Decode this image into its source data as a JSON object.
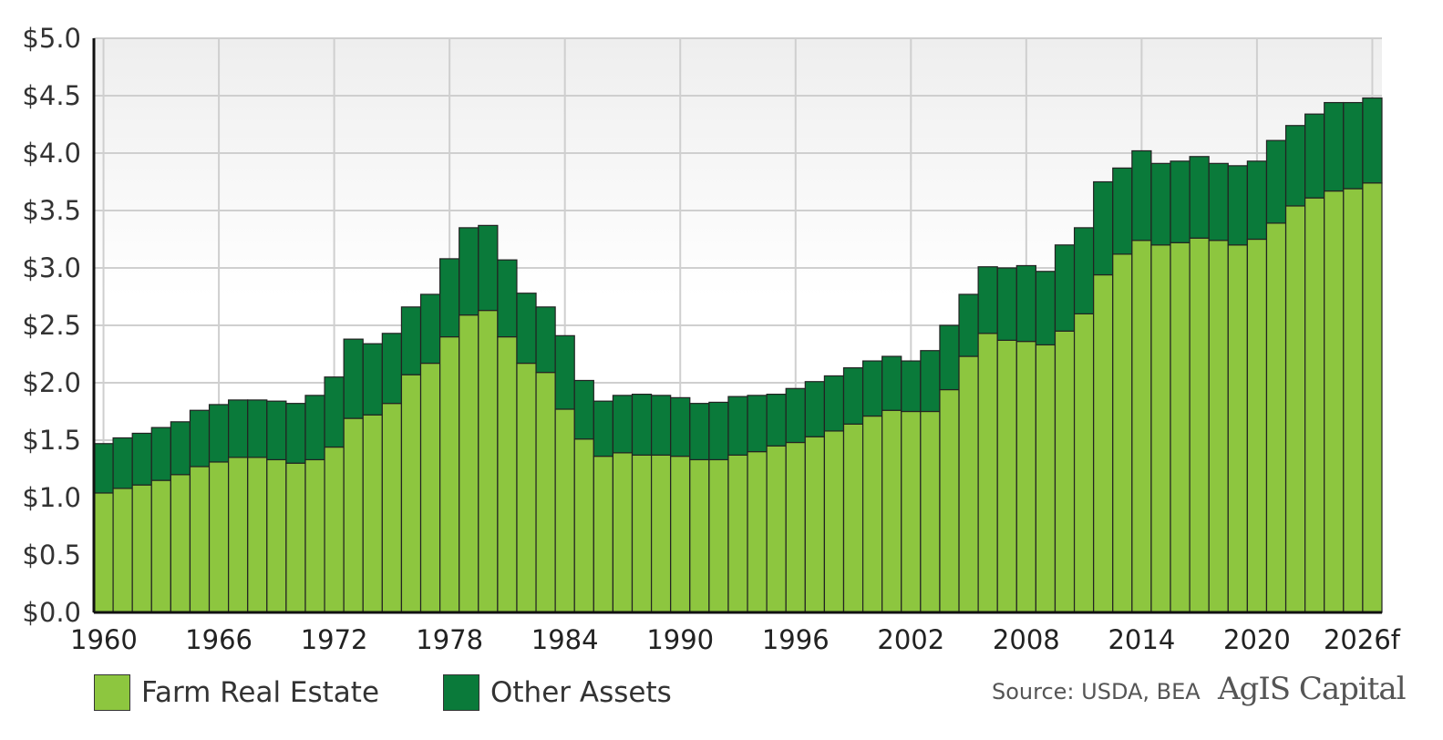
{
  "chart_data": {
    "type": "bar",
    "stacked": true,
    "title": "",
    "xlabel": "",
    "ylabel": "",
    "ylim": [
      0,
      5
    ],
    "yticks": [
      "$0.0",
      "$0.5",
      "$1.0",
      "$1.5",
      "$2.0",
      "$2.5",
      "$3.0",
      "$3.5",
      "$4.0",
      "$4.5",
      "$5.0"
    ],
    "xticks": [
      "1960",
      "1966",
      "1972",
      "1978",
      "1984",
      "1990",
      "1996",
      "2002",
      "2008",
      "2014",
      "2020",
      "2026f"
    ],
    "grid": true,
    "categories": [
      "1960",
      "1961",
      "1962",
      "1963",
      "1964",
      "1965",
      "1966",
      "1967",
      "1968",
      "1969",
      "1970",
      "1971",
      "1972",
      "1973",
      "1974",
      "1975",
      "1976",
      "1977",
      "1978",
      "1979",
      "1980",
      "1981",
      "1982",
      "1983",
      "1984",
      "1985",
      "1986",
      "1987",
      "1988",
      "1989",
      "1990",
      "1991",
      "1992",
      "1993",
      "1994",
      "1995",
      "1996",
      "1997",
      "1998",
      "1999",
      "2000",
      "2001",
      "2002",
      "2003",
      "2004",
      "2005",
      "2006",
      "2007",
      "2008",
      "2009",
      "2010",
      "2011",
      "2012",
      "2013",
      "2014",
      "2015",
      "2016",
      "2017",
      "2018",
      "2019",
      "2020",
      "2021",
      "2022",
      "2023",
      "2024",
      "2025",
      "2026f"
    ],
    "series": [
      {
        "name": "Farm Real Estate",
        "color": "#8dc63f",
        "values": [
          1.04,
          1.08,
          1.11,
          1.15,
          1.2,
          1.27,
          1.31,
          1.35,
          1.35,
          1.33,
          1.3,
          1.33,
          1.44,
          1.69,
          1.72,
          1.82,
          2.07,
          2.17,
          2.4,
          2.59,
          2.63,
          2.4,
          2.17,
          2.09,
          1.77,
          1.51,
          1.36,
          1.39,
          1.37,
          1.37,
          1.36,
          1.33,
          1.33,
          1.37,
          1.4,
          1.45,
          1.48,
          1.53,
          1.58,
          1.64,
          1.71,
          1.76,
          1.75,
          1.75,
          1.94,
          2.23,
          2.43,
          2.37,
          2.36,
          2.33,
          2.45,
          2.6,
          2.94,
          3.12,
          3.24,
          3.2,
          3.22,
          3.26,
          3.24,
          3.2,
          3.25,
          3.39,
          3.54,
          3.61,
          3.67,
          3.69,
          3.74
        ]
      },
      {
        "name": "Other Assets",
        "color": "#0a7a3a",
        "values": [
          0.43,
          0.44,
          0.45,
          0.46,
          0.46,
          0.49,
          0.5,
          0.5,
          0.5,
          0.51,
          0.52,
          0.56,
          0.61,
          0.69,
          0.62,
          0.61,
          0.59,
          0.6,
          0.68,
          0.76,
          0.74,
          0.67,
          0.61,
          0.57,
          0.64,
          0.51,
          0.48,
          0.5,
          0.53,
          0.52,
          0.51,
          0.49,
          0.5,
          0.51,
          0.49,
          0.45,
          0.47,
          0.48,
          0.48,
          0.49,
          0.48,
          0.47,
          0.44,
          0.53,
          0.56,
          0.54,
          0.58,
          0.63,
          0.66,
          0.64,
          0.75,
          0.75,
          0.81,
          0.75,
          0.78,
          0.71,
          0.71,
          0.71,
          0.67,
          0.69,
          0.68,
          0.72,
          0.7,
          0.73,
          0.77,
          0.75,
          0.74
        ]
      }
    ],
    "legend_position": "bottom-left"
  },
  "legend": {
    "farm_real_estate": "Farm Real Estate",
    "other_assets": "Other Assets"
  },
  "footer": {
    "source": "Source: USDA, BEA",
    "brand": "AgIS Capital"
  }
}
